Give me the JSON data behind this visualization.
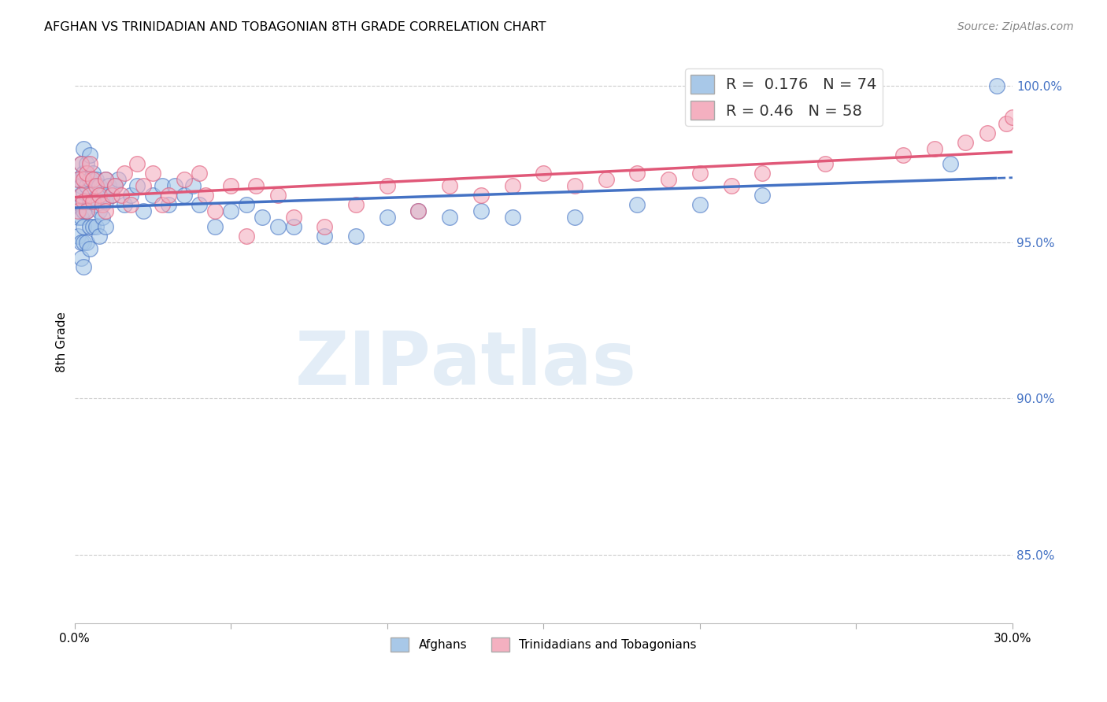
{
  "title": "AFGHAN VS TRINIDADIAN AND TOBAGONIAN 8TH GRADE CORRELATION CHART",
  "source": "Source: ZipAtlas.com",
  "ylabel": "8th Grade",
  "x_min": 0.0,
  "x_max": 0.3,
  "y_min": 0.828,
  "y_max": 1.008,
  "y_ticks": [
    0.85,
    0.9,
    0.95,
    1.0
  ],
  "y_tick_labels": [
    "85.0%",
    "90.0%",
    "95.0%",
    "100.0%"
  ],
  "x_ticks": [
    0.0,
    0.05,
    0.1,
    0.15,
    0.2,
    0.25,
    0.3
  ],
  "x_tick_labels": [
    "0.0%",
    "",
    "",
    "",
    "",
    "",
    "30.0%"
  ],
  "blue_R": 0.176,
  "blue_N": 74,
  "pink_R": 0.46,
  "pink_N": 58,
  "blue_color": "#a8c8e8",
  "pink_color": "#f4b0c0",
  "blue_line_color": "#4472c4",
  "pink_line_color": "#e05878",
  "watermark_zip": "ZIP",
  "watermark_atlas": "atlas",
  "blue_x": [
    0.001,
    0.001,
    0.001,
    0.001,
    0.002,
    0.002,
    0.002,
    0.002,
    0.002,
    0.002,
    0.003,
    0.003,
    0.003,
    0.003,
    0.003,
    0.003,
    0.003,
    0.004,
    0.004,
    0.004,
    0.004,
    0.005,
    0.005,
    0.005,
    0.005,
    0.005,
    0.006,
    0.006,
    0.006,
    0.007,
    0.007,
    0.007,
    0.008,
    0.008,
    0.008,
    0.009,
    0.009,
    0.01,
    0.01,
    0.01,
    0.011,
    0.012,
    0.013,
    0.014,
    0.016,
    0.018,
    0.02,
    0.022,
    0.025,
    0.028,
    0.03,
    0.032,
    0.035,
    0.038,
    0.04,
    0.045,
    0.05,
    0.055,
    0.06,
    0.065,
    0.07,
    0.08,
    0.09,
    0.1,
    0.11,
    0.12,
    0.13,
    0.14,
    0.16,
    0.18,
    0.2,
    0.22,
    0.28,
    0.295
  ],
  "blue_y": [
    0.97,
    0.962,
    0.958,
    0.952,
    0.975,
    0.968,
    0.962,
    0.958,
    0.95,
    0.945,
    0.98,
    0.972,
    0.966,
    0.96,
    0.955,
    0.95,
    0.942,
    0.975,
    0.968,
    0.96,
    0.95,
    0.978,
    0.97,
    0.963,
    0.955,
    0.948,
    0.972,
    0.963,
    0.955,
    0.97,
    0.962,
    0.955,
    0.968,
    0.96,
    0.952,
    0.965,
    0.958,
    0.97,
    0.963,
    0.955,
    0.968,
    0.965,
    0.968,
    0.97,
    0.962,
    0.965,
    0.968,
    0.96,
    0.965,
    0.968,
    0.962,
    0.968,
    0.965,
    0.968,
    0.962,
    0.955,
    0.96,
    0.962,
    0.958,
    0.955,
    0.955,
    0.952,
    0.952,
    0.958,
    0.96,
    0.958,
    0.96,
    0.958,
    0.958,
    0.962,
    0.962,
    0.965,
    0.975,
    1.0
  ],
  "pink_x": [
    0.001,
    0.001,
    0.002,
    0.002,
    0.003,
    0.003,
    0.004,
    0.004,
    0.005,
    0.005,
    0.006,
    0.006,
    0.007,
    0.008,
    0.009,
    0.01,
    0.01,
    0.012,
    0.013,
    0.015,
    0.016,
    0.018,
    0.02,
    0.022,
    0.025,
    0.028,
    0.03,
    0.035,
    0.04,
    0.042,
    0.045,
    0.05,
    0.055,
    0.058,
    0.065,
    0.07,
    0.08,
    0.09,
    0.1,
    0.11,
    0.12,
    0.13,
    0.14,
    0.15,
    0.16,
    0.17,
    0.18,
    0.19,
    0.2,
    0.21,
    0.22,
    0.24,
    0.265,
    0.275,
    0.285,
    0.292,
    0.298,
    0.3
  ],
  "pink_y": [
    0.97,
    0.96,
    0.975,
    0.965,
    0.97,
    0.963,
    0.972,
    0.96,
    0.975,
    0.965,
    0.97,
    0.963,
    0.968,
    0.965,
    0.962,
    0.97,
    0.96,
    0.965,
    0.968,
    0.965,
    0.972,
    0.962,
    0.975,
    0.968,
    0.972,
    0.962,
    0.965,
    0.97,
    0.972,
    0.965,
    0.96,
    0.968,
    0.952,
    0.968,
    0.965,
    0.958,
    0.955,
    0.962,
    0.968,
    0.96,
    0.968,
    0.965,
    0.968,
    0.972,
    0.968,
    0.97,
    0.972,
    0.97,
    0.972,
    0.968,
    0.972,
    0.975,
    0.978,
    0.98,
    0.982,
    0.985,
    0.988,
    0.99
  ]
}
